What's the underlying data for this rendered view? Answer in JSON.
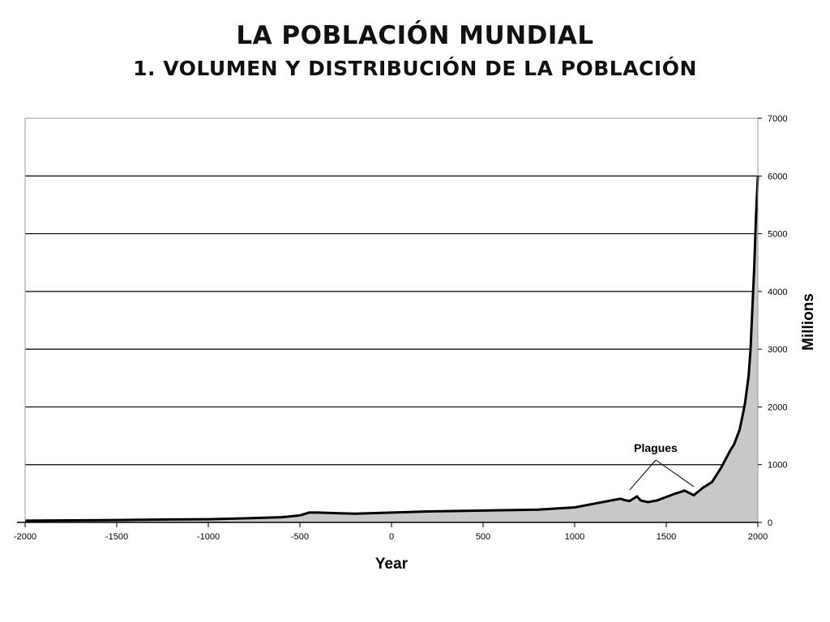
{
  "header": {
    "title": "LA POBLACIÓN MUNDIAL",
    "subtitle": "1. VOLUMEN Y DISTRIBUCIÓN DE LA POBLACIÓN"
  },
  "chart_data": {
    "type": "area",
    "title": "",
    "xlabel": "Year",
    "ylabel": "Millions",
    "xlim": [
      -2000,
      2000
    ],
    "ylim": [
      0,
      7000
    ],
    "x_ticks": [
      -2000,
      -1500,
      -1000,
      -500,
      0,
      500,
      1000,
      1500,
      2000
    ],
    "y_ticks": [
      0,
      1000,
      2000,
      3000,
      4000,
      5000,
      6000,
      7000
    ],
    "grid": "horizontal",
    "y_axis_position": "right",
    "fill_color": "#c8c8c8",
    "line_color": "#000000",
    "annotation": {
      "text": "Plagues",
      "targets": [
        1300,
        1650
      ]
    },
    "series": [
      {
        "x": [
          -2000,
          -1500,
          -1200,
          -1000,
          -800,
          -600,
          -500,
          -450,
          -400,
          -300,
          -200,
          0,
          200,
          400,
          600,
          800,
          1000,
          1100,
          1200,
          1250,
          1280,
          1300,
          1340,
          1360,
          1400,
          1450,
          1500,
          1550,
          1600,
          1650,
          1700,
          1750,
          1800,
          1850,
          1870,
          1900,
          1920,
          1930,
          1940,
          1950,
          1960,
          1970,
          1980,
          1990,
          2000
        ],
        "y": [
          30,
          40,
          50,
          55,
          70,
          90,
          120,
          170,
          170,
          160,
          150,
          170,
          190,
          200,
          210,
          220,
          260,
          320,
          380,
          410,
          380,
          370,
          450,
          380,
          350,
          380,
          440,
          500,
          550,
          470,
          600,
          700,
          950,
          1250,
          1350,
          1600,
          1900,
          2070,
          2300,
          2550,
          3000,
          3700,
          4400,
          5300,
          6000
        ]
      }
    ]
  }
}
